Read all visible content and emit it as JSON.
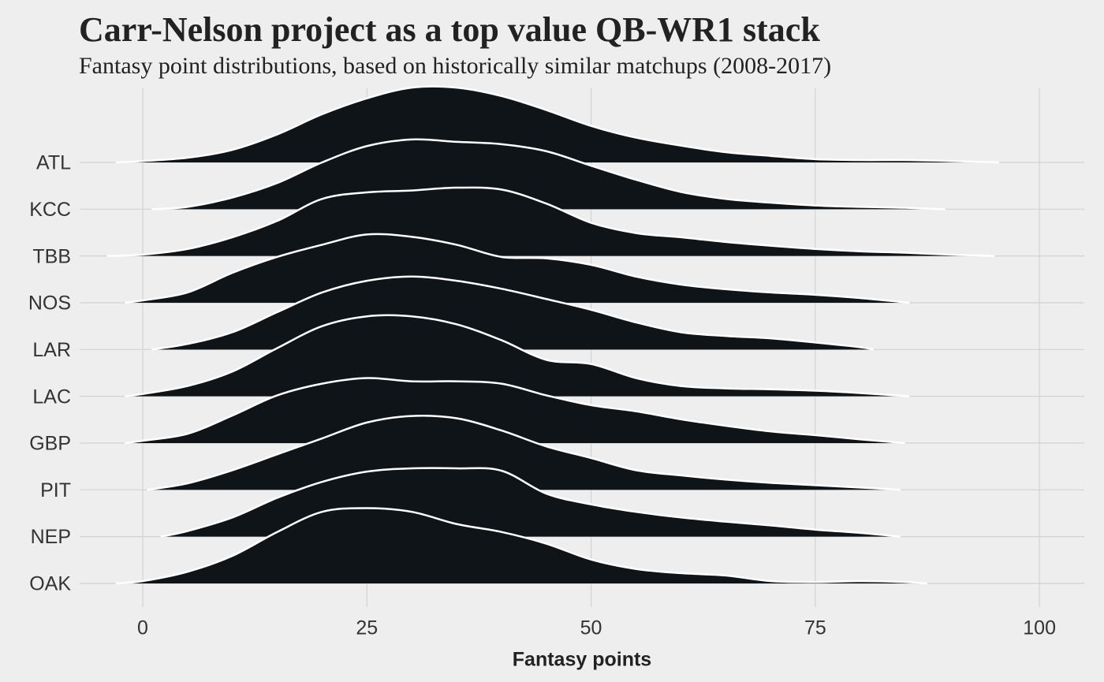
{
  "chart_data": {
    "type": "ridgeline",
    "title": "Carr-Nelson project as a top value QB-WR1 stack",
    "subtitle": "Fantasy point distributions, based on historically similar matchups (2008-2017)",
    "xlabel": "Fantasy points",
    "xlim": [
      -7,
      105
    ],
    "xticks": [
      0,
      25,
      50,
      75,
      100
    ],
    "grid": true,
    "fill": "#0f1418",
    "stroke": "#ffffff",
    "categories": [
      "ATL",
      "KCC",
      "TBB",
      "NOS",
      "LAR",
      "LAC",
      "GBP",
      "PIT",
      "NEP",
      "OAK"
    ],
    "series": [
      {
        "name": "ATL",
        "x": [
          -3,
          0,
          5,
          10,
          15,
          20,
          25,
          30,
          35,
          40,
          45,
          50,
          55,
          60,
          65,
          70,
          75,
          80,
          85,
          90,
          95.5
        ],
        "values": [
          0,
          0.03,
          0.1,
          0.27,
          0.6,
          1.03,
          1.37,
          1.6,
          1.6,
          1.42,
          1.12,
          0.78,
          0.53,
          0.36,
          0.22,
          0.14,
          0.07,
          0.05,
          0.05,
          0.03,
          0
        ]
      },
      {
        "name": "KCC",
        "x": [
          1,
          5,
          10,
          15,
          20,
          25,
          30,
          35,
          40,
          45,
          50,
          55,
          60,
          65,
          70,
          75,
          80,
          85,
          89.5
        ],
        "values": [
          0,
          0.05,
          0.25,
          0.56,
          1.0,
          1.35,
          1.49,
          1.44,
          1.39,
          1.24,
          0.93,
          0.63,
          0.37,
          0.22,
          0.14,
          0.08,
          0.05,
          0.03,
          0
        ]
      },
      {
        "name": "TBB",
        "x": [
          -4,
          0,
          5,
          10,
          15,
          20,
          25,
          30,
          35,
          40,
          45,
          50,
          55,
          60,
          65,
          70,
          75,
          80,
          85,
          90,
          95
        ],
        "values": [
          0,
          0.03,
          0.15,
          0.4,
          0.75,
          1.22,
          1.36,
          1.4,
          1.46,
          1.42,
          1.12,
          0.71,
          0.49,
          0.4,
          0.3,
          0.22,
          0.15,
          0.1,
          0.07,
          0.03,
          0
        ]
      },
      {
        "name": "NOS",
        "x": [
          -2,
          0,
          5,
          10,
          15,
          20,
          25,
          30,
          35,
          40,
          45,
          50,
          55,
          60,
          65,
          70,
          75,
          80,
          85.5
        ],
        "values": [
          0,
          0.05,
          0.22,
          0.64,
          0.98,
          1.24,
          1.46,
          1.41,
          1.24,
          0.98,
          0.95,
          0.81,
          0.56,
          0.39,
          0.29,
          0.22,
          0.17,
          0.1,
          0
        ]
      },
      {
        "name": "LAR",
        "x": [
          1,
          5,
          10,
          15,
          20,
          25,
          30,
          35,
          40,
          45,
          50,
          55,
          60,
          65,
          70,
          75,
          80,
          81.5
        ],
        "values": [
          0,
          0.12,
          0.37,
          0.8,
          1.22,
          1.47,
          1.56,
          1.47,
          1.3,
          1.08,
          0.85,
          0.58,
          0.37,
          0.29,
          0.24,
          0.15,
          0.05,
          0
        ]
      },
      {
        "name": "LAC",
        "x": [
          -2,
          0,
          5,
          10,
          15,
          20,
          25,
          30,
          35,
          40,
          45,
          50,
          55,
          60,
          65,
          70,
          75,
          80,
          85.5
        ],
        "values": [
          0,
          0.05,
          0.22,
          0.53,
          1.03,
          1.5,
          1.71,
          1.71,
          1.54,
          1.2,
          0.78,
          0.69,
          0.39,
          0.22,
          0.17,
          0.15,
          0.12,
          0.07,
          0
        ]
      },
      {
        "name": "GBP",
        "x": [
          -2,
          0,
          5,
          10,
          15,
          20,
          25,
          30,
          35,
          40,
          45,
          50,
          55,
          60,
          65,
          70,
          75,
          80,
          85
        ],
        "values": [
          0,
          0.05,
          0.2,
          0.59,
          1.02,
          1.27,
          1.39,
          1.32,
          1.32,
          1.27,
          1.02,
          0.81,
          0.68,
          0.51,
          0.37,
          0.25,
          0.17,
          0.08,
          0
        ]
      },
      {
        "name": "PIT",
        "x": [
          0.5,
          5,
          10,
          15,
          20,
          25,
          30,
          35,
          40,
          45,
          50,
          55,
          60,
          65,
          70,
          75,
          80,
          84.5
        ],
        "values": [
          0,
          0.14,
          0.42,
          0.76,
          1.1,
          1.44,
          1.58,
          1.53,
          1.27,
          0.93,
          0.68,
          0.42,
          0.31,
          0.22,
          0.15,
          0.1,
          0.05,
          0
        ]
      },
      {
        "name": "NEP",
        "x": [
          2,
          5,
          10,
          15,
          20,
          25,
          30,
          35,
          40,
          45,
          50,
          55,
          60,
          65,
          70,
          75,
          80,
          84.5
        ],
        "values": [
          0,
          0.12,
          0.41,
          0.83,
          1.17,
          1.39,
          1.46,
          1.46,
          1.41,
          0.92,
          0.69,
          0.53,
          0.41,
          0.32,
          0.24,
          0.15,
          0.08,
          0
        ]
      },
      {
        "name": "OAK",
        "x": [
          -3,
          0,
          5,
          10,
          15,
          20,
          25,
          30,
          35,
          40,
          45,
          50,
          55,
          60,
          65,
          70,
          75,
          80,
          85,
          87.5
        ],
        "values": [
          0,
          0.05,
          0.25,
          0.59,
          1.1,
          1.53,
          1.61,
          1.53,
          1.27,
          1.1,
          0.85,
          0.51,
          0.31,
          0.22,
          0.17,
          0.05,
          0.03,
          0.05,
          0.03,
          0
        ]
      }
    ]
  }
}
